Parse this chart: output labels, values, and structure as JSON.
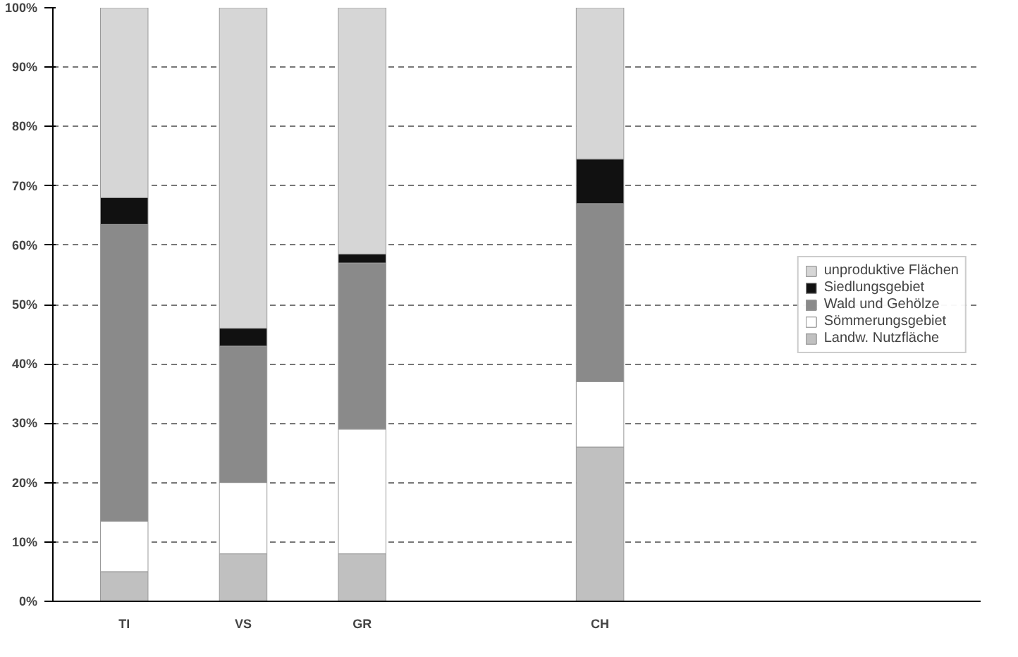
{
  "chart_data": {
    "type": "bar",
    "stacked": true,
    "categories": [
      "TI",
      "VS",
      "GR",
      null,
      "CH"
    ],
    "series": [
      {
        "name": "Landw. Nutzfläche",
        "color": "#c0c0c0",
        "values": [
          5,
          8,
          8,
          null,
          26
        ]
      },
      {
        "name": "Sömmerungsgebiet",
        "color": "#ffffff",
        "values": [
          8.5,
          12,
          21,
          null,
          11
        ]
      },
      {
        "name": "Wald und Gehölze",
        "color": "#8a8a8a",
        "values": [
          50,
          23,
          28,
          null,
          30
        ]
      },
      {
        "name": "Siedlungsgebiet",
        "color": "#111111",
        "values": [
          4.5,
          3,
          1.5,
          null,
          7.5
        ]
      },
      {
        "name": "unproduktive Flächen",
        "color": "#d6d6d6",
        "values": [
          32,
          54,
          41.5,
          null,
          25.5
        ]
      }
    ],
    "ylim": [
      0,
      100
    ],
    "yticks": [
      {
        "value": 0,
        "label": "0%"
      },
      {
        "value": 10,
        "label": "10%"
      },
      {
        "value": 20,
        "label": "20%"
      },
      {
        "value": 30,
        "label": "30%"
      },
      {
        "value": 40,
        "label": "40%"
      },
      {
        "value": 50,
        "label": "50%"
      },
      {
        "value": 60,
        "label": "60%"
      },
      {
        "value": 70,
        "label": "70%"
      },
      {
        "value": 80,
        "label": "80%"
      },
      {
        "value": 90,
        "label": "90%"
      },
      {
        "value": 100,
        "label": "100%"
      }
    ],
    "grid": "y",
    "legend": "right"
  }
}
